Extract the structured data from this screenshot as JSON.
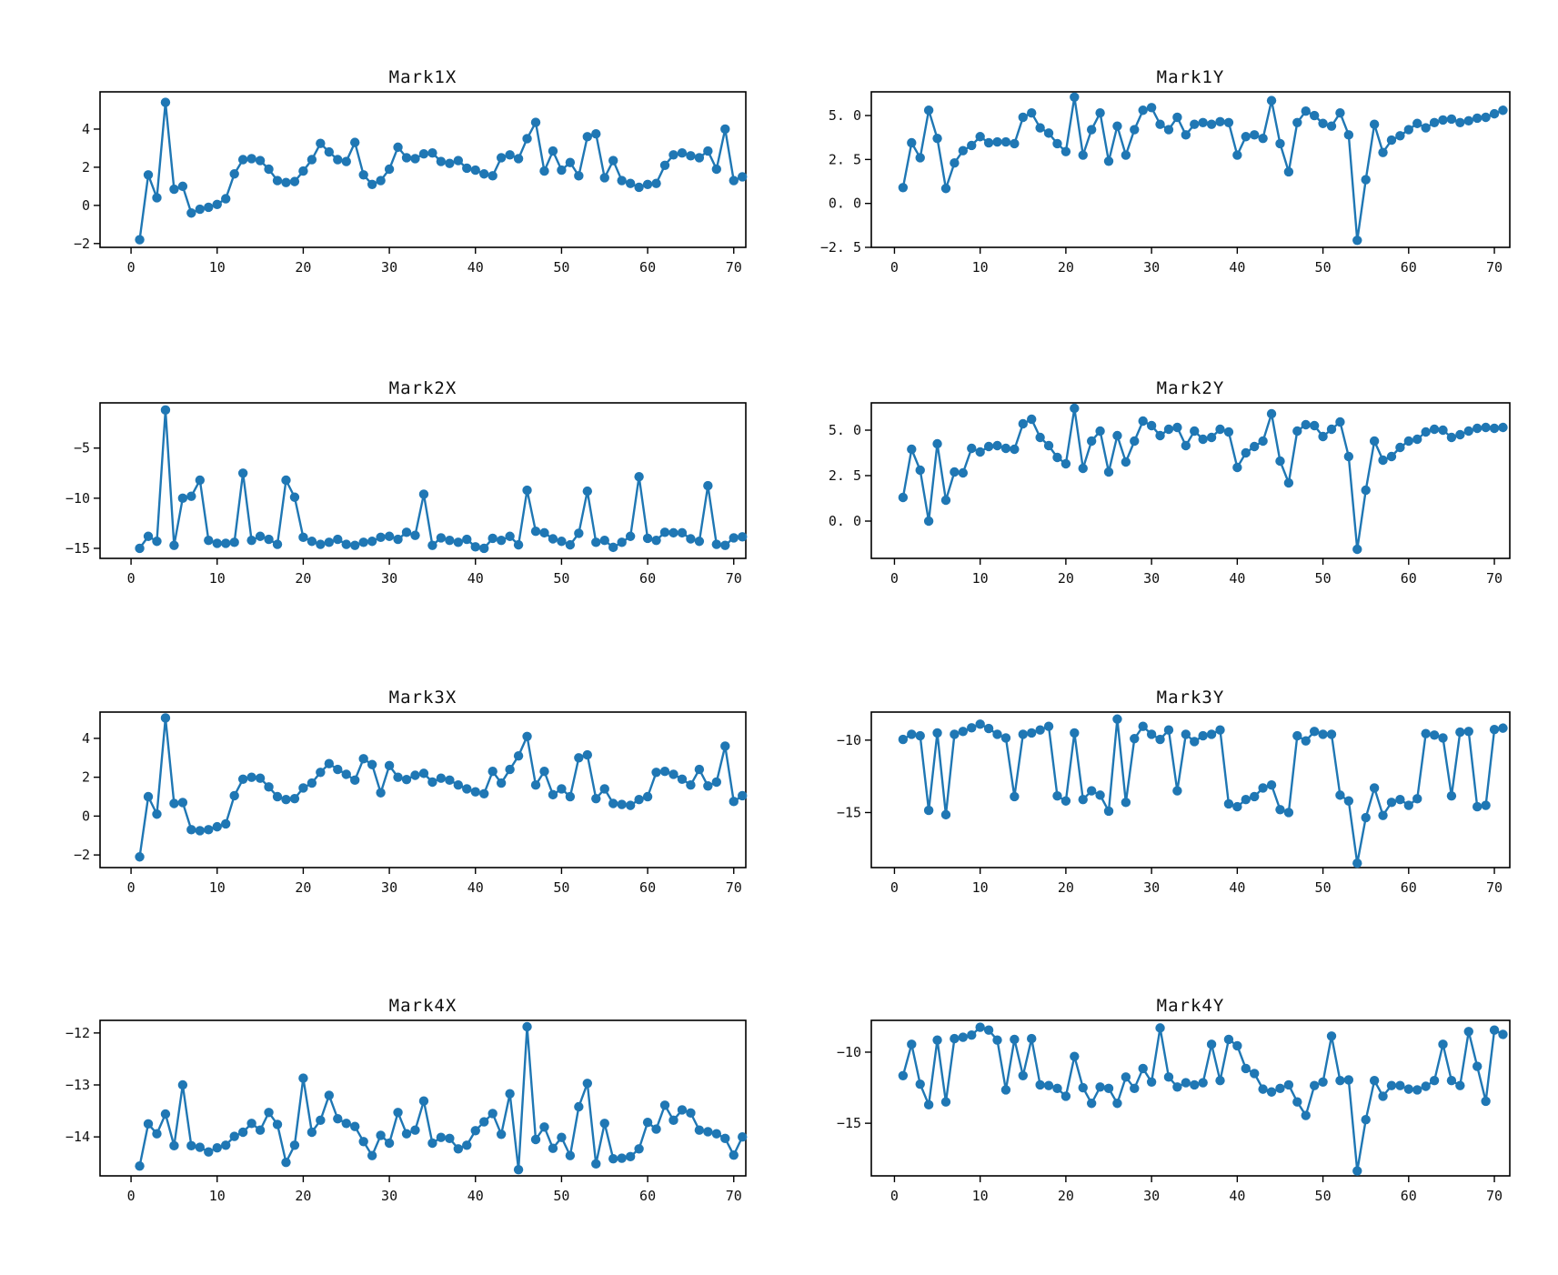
{
  "style": {
    "series_color": "#1f77b4",
    "axis_color": "#000000",
    "background": "#ffffff",
    "marker": "circle"
  },
  "charts": [
    {
      "id": "mark1x",
      "title": "Mark1X",
      "type": "line",
      "x_start": 1,
      "xlim": [
        -3.6,
        71.4
      ],
      "ylim": [
        -2.2,
        6.0
      ],
      "xticks": {
        "values": [
          0,
          10,
          20,
          30,
          40,
          50,
          60,
          70
        ],
        "labels": [
          "0",
          "10",
          "20",
          "30",
          "40",
          "50",
          "60",
          "70"
        ]
      },
      "yticks": {
        "values": [
          -2,
          0,
          2,
          4
        ],
        "labels": [
          "−2",
          "0",
          "2",
          "4"
        ]
      },
      "values": [
        -1.8,
        1.6,
        0.4,
        5.4,
        0.85,
        1.0,
        -0.4,
        -0.2,
        -0.1,
        0.05,
        0.35,
        1.65,
        2.4,
        2.45,
        2.35,
        1.9,
        1.3,
        1.2,
        1.25,
        1.8,
        2.4,
        3.25,
        2.8,
        2.4,
        2.3,
        3.3,
        1.6,
        1.1,
        1.3,
        1.9,
        3.05,
        2.5,
        2.45,
        2.7,
        2.75,
        2.3,
        2.2,
        2.35,
        1.95,
        1.85,
        1.65,
        1.55,
        2.5,
        2.65,
        2.45,
        3.5,
        4.35,
        1.8,
        2.85,
        1.85,
        2.25,
        1.55,
        3.6,
        3.75,
        1.45,
        2.35,
        1.3,
        1.15,
        0.95,
        1.1,
        1.15,
        2.1,
        2.65,
        2.75,
        2.6,
        2.5,
        2.85,
        1.9,
        4.0,
        1.3,
        1.5
      ]
    },
    {
      "id": "mark1y",
      "title": "Mark1Y",
      "type": "line",
      "x_start": 1,
      "xlim": [
        -2.7,
        71.8
      ],
      "ylim": [
        -2.5,
        6.4
      ],
      "xticks": {
        "values": [
          0,
          10,
          20,
          30,
          40,
          50,
          60,
          70
        ],
        "labels": [
          "0",
          "10",
          "20",
          "30",
          "40",
          "50",
          "60",
          "70"
        ]
      },
      "yticks": {
        "values": [
          -2.5,
          0,
          2.5,
          5
        ],
        "labels": [
          "−2. 5",
          "0. 0",
          "2. 5",
          "5. 0"
        ]
      },
      "values": [
        0.9,
        3.45,
        2.6,
        5.3,
        3.7,
        0.85,
        2.3,
        3.0,
        3.3,
        3.8,
        3.45,
        3.5,
        3.5,
        3.4,
        4.9,
        5.15,
        4.3,
        4.0,
        3.4,
        2.95,
        6.05,
        2.75,
        4.2,
        5.15,
        2.4,
        4.4,
        2.75,
        4.2,
        5.3,
        5.45,
        4.5,
        4.2,
        4.9,
        3.9,
        4.5,
        4.6,
        4.5,
        4.65,
        4.6,
        2.75,
        3.8,
        3.9,
        3.7,
        5.85,
        3.4,
        1.8,
        4.6,
        5.25,
        5.0,
        4.55,
        4.4,
        5.15,
        3.9,
        -2.1,
        1.35,
        4.5,
        2.9,
        3.6,
        3.85,
        4.2,
        4.55,
        4.3,
        4.6,
        4.75,
        4.8,
        4.6,
        4.7,
        4.85,
        4.9,
        5.1,
        5.3
      ]
    },
    {
      "id": "mark2x",
      "title": "Mark2X",
      "type": "line",
      "x_start": 1,
      "xlim": [
        -3.6,
        71.4
      ],
      "ylim": [
        -16.0,
        -0.4
      ],
      "xticks": {
        "values": [
          0,
          10,
          20,
          30,
          40,
          50,
          60,
          70
        ],
        "labels": [
          "0",
          "10",
          "20",
          "30",
          "40",
          "50",
          "60",
          "70"
        ]
      },
      "yticks": {
        "values": [
          -15,
          -10,
          -5
        ],
        "labels": [
          "−15",
          "−10",
          "−5"
        ]
      },
      "values": [
        -15.0,
        -13.8,
        -14.3,
        -1.2,
        -14.7,
        -10.0,
        -9.8,
        -8.2,
        -14.2,
        -14.5,
        -14.5,
        -14.4,
        -7.5,
        -14.2,
        -13.8,
        -14.1,
        -14.6,
        -8.2,
        -9.9,
        -13.9,
        -14.3,
        -14.6,
        -14.4,
        -14.1,
        -14.6,
        -14.7,
        -14.4,
        -14.3,
        -13.9,
        -13.8,
        -14.1,
        -13.4,
        -13.7,
        -9.6,
        -14.7,
        -13.95,
        -14.2,
        -14.4,
        -14.1,
        -14.85,
        -15.0,
        -14.0,
        -14.2,
        -13.8,
        -14.65,
        -9.2,
        -13.3,
        -13.45,
        -14.05,
        -14.3,
        -14.65,
        -13.5,
        -9.3,
        -14.4,
        -14.2,
        -14.9,
        -14.4,
        -13.8,
        -7.85,
        -14.0,
        -14.2,
        -13.4,
        -13.45,
        -13.45,
        -14.05,
        -14.3,
        -8.75,
        -14.6,
        -14.7,
        -13.95,
        -13.85
      ]
    },
    {
      "id": "mark2y",
      "title": "Mark2Y",
      "type": "line",
      "x_start": 1,
      "xlim": [
        -2.7,
        71.8
      ],
      "ylim": [
        -2.05,
        6.55
      ],
      "xticks": {
        "values": [
          0,
          10,
          20,
          30,
          40,
          50,
          60,
          70
        ],
        "labels": [
          "0",
          "10",
          "20",
          "30",
          "40",
          "50",
          "60",
          "70"
        ]
      },
      "yticks": {
        "values": [
          0,
          2.5,
          5
        ],
        "labels": [
          "0. 0",
          "2. 5",
          "5. 0"
        ]
      },
      "values": [
        1.3,
        3.95,
        2.8,
        0.0,
        4.25,
        1.15,
        2.7,
        2.65,
        4.0,
        3.8,
        4.1,
        4.15,
        4.0,
        3.95,
        5.35,
        5.6,
        4.6,
        4.15,
        3.5,
        3.15,
        6.2,
        2.9,
        4.4,
        4.95,
        2.7,
        4.7,
        3.25,
        4.4,
        5.5,
        5.25,
        4.7,
        5.05,
        5.15,
        4.15,
        4.95,
        4.5,
        4.6,
        5.05,
        4.9,
        2.95,
        3.75,
        4.1,
        4.4,
        5.9,
        3.3,
        2.1,
        4.95,
        5.3,
        5.25,
        4.65,
        5.05,
        5.45,
        3.55,
        -1.55,
        1.7,
        4.4,
        3.35,
        3.55,
        4.05,
        4.4,
        4.5,
        4.9,
        5.05,
        5.0,
        4.6,
        4.75,
        4.95,
        5.1,
        5.15,
        5.1,
        5.15
      ]
    },
    {
      "id": "mark3x",
      "title": "Mark3X",
      "type": "line",
      "x_start": 1,
      "xlim": [
        -3.6,
        71.4
      ],
      "ylim": [
        -2.65,
        5.4
      ],
      "xticks": {
        "values": [
          0,
          10,
          20,
          30,
          40,
          50,
          60,
          70
        ],
        "labels": [
          "0",
          "10",
          "20",
          "30",
          "40",
          "50",
          "60",
          "70"
        ]
      },
      "yticks": {
        "values": [
          -2,
          0,
          2,
          4
        ],
        "labels": [
          "−2",
          "0",
          "2",
          "4"
        ]
      },
      "values": [
        -2.1,
        1.0,
        0.1,
        5.05,
        0.65,
        0.7,
        -0.7,
        -0.75,
        -0.7,
        -0.55,
        -0.4,
        1.05,
        1.9,
        2.0,
        1.95,
        1.5,
        1.0,
        0.85,
        0.9,
        1.45,
        1.7,
        2.25,
        2.7,
        2.4,
        2.15,
        1.85,
        2.95,
        2.65,
        1.2,
        2.6,
        2.0,
        1.88,
        2.1,
        2.2,
        1.75,
        1.95,
        1.85,
        1.6,
        1.4,
        1.25,
        1.15,
        2.3,
        1.7,
        2.4,
        3.1,
        4.1,
        1.6,
        2.3,
        1.1,
        1.4,
        1.0,
        3.0,
        3.15,
        0.9,
        1.4,
        0.65,
        0.6,
        0.55,
        0.85,
        1.0,
        2.25,
        2.3,
        2.15,
        1.9,
        1.6,
        2.4,
        1.55,
        1.75,
        3.6,
        0.75,
        1.05
      ]
    },
    {
      "id": "mark3y",
      "title": "Mark3Y",
      "type": "line",
      "x_start": 1,
      "xlim": [
        -2.7,
        71.8
      ],
      "ylim": [
        -18.8,
        -8.0
      ],
      "xticks": {
        "values": [
          0,
          10,
          20,
          30,
          40,
          50,
          60,
          70
        ],
        "labels": [
          "0",
          "10",
          "20",
          "30",
          "40",
          "50",
          "60",
          "70"
        ]
      },
      "yticks": {
        "values": [
          -15,
          -10
        ],
        "labels": [
          "−15",
          "−10"
        ]
      },
      "values": [
        -9.95,
        -9.6,
        -9.7,
        -14.85,
        -9.5,
        -15.15,
        -9.6,
        -9.4,
        -9.15,
        -8.9,
        -9.2,
        -9.6,
        -9.85,
        -13.9,
        -9.6,
        -9.5,
        -9.3,
        -9.05,
        -13.85,
        -14.2,
        -9.5,
        -14.1,
        -13.5,
        -13.8,
        -14.9,
        -8.55,
        -14.3,
        -9.9,
        -9.05,
        -9.6,
        -9.95,
        -9.3,
        -13.5,
        -9.6,
        -10.1,
        -9.7,
        -9.6,
        -9.3,
        -14.4,
        -14.6,
        -14.1,
        -13.9,
        -13.3,
        -13.1,
        -14.8,
        -15.0,
        -9.7,
        -10.05,
        -9.4,
        -9.6,
        -9.6,
        -13.8,
        -14.2,
        -18.5,
        -15.35,
        -13.3,
        -15.2,
        -14.3,
        -14.1,
        -14.5,
        -14.05,
        -9.55,
        -9.65,
        -9.85,
        -13.85,
        -9.45,
        -9.4,
        -14.6,
        -14.5,
        -9.27,
        -9.17
      ]
    },
    {
      "id": "mark4x",
      "title": "Mark4X",
      "type": "line",
      "x_start": 1,
      "xlim": [
        -3.6,
        71.4
      ],
      "ylim": [
        -14.75,
        -11.74
      ],
      "xticks": {
        "values": [
          0,
          10,
          20,
          30,
          40,
          50,
          60,
          70
        ],
        "labels": [
          "0",
          "10",
          "20",
          "30",
          "40",
          "50",
          "60",
          "70"
        ]
      },
      "yticks": {
        "values": [
          -14,
          -13,
          -12
        ],
        "labels": [
          "−14",
          "−13",
          "−12"
        ]
      },
      "values": [
        -14.56,
        -13.75,
        -13.94,
        -13.56,
        -14.17,
        -13.0,
        -14.17,
        -14.2,
        -14.29,
        -14.21,
        -14.16,
        -13.99,
        -13.91,
        -13.74,
        -13.87,
        -13.53,
        -13.76,
        -14.49,
        -14.16,
        -12.87,
        -13.91,
        -13.68,
        -13.2,
        -13.65,
        -13.74,
        -13.8,
        -14.09,
        -14.36,
        -13.97,
        -14.12,
        -13.53,
        -13.94,
        -13.87,
        -13.31,
        -14.12,
        -14.01,
        -14.03,
        -14.23,
        -14.16,
        -13.88,
        -13.71,
        -13.55,
        -13.95,
        -13.17,
        -14.63,
        -11.88,
        -14.05,
        -13.81,
        -14.22,
        -14.01,
        -14.36,
        -13.42,
        -12.97,
        -14.52,
        -13.74,
        -14.42,
        -14.41,
        -14.38,
        -14.23,
        -13.72,
        -13.85,
        -13.39,
        -13.68,
        -13.48,
        -13.54,
        -13.87,
        -13.9,
        -13.94,
        -14.03,
        -14.35,
        -14.0
      ]
    },
    {
      "id": "mark4y",
      "title": "Mark4Y",
      "type": "line",
      "x_start": 1,
      "xlim": [
        -2.7,
        71.8
      ],
      "ylim": [
        -18.7,
        -7.7
      ],
      "xticks": {
        "values": [
          0,
          10,
          20,
          30,
          40,
          50,
          60,
          70
        ],
        "labels": [
          "0",
          "10",
          "20",
          "30",
          "40",
          "50",
          "60",
          "70"
        ]
      },
      "yticks": {
        "values": [
          -15,
          -10
        ],
        "labels": [
          "−15",
          "−10"
        ]
      },
      "values": [
        -11.65,
        -9.45,
        -12.25,
        -13.7,
        -9.15,
        -13.5,
        -9.05,
        -8.95,
        -8.8,
        -8.25,
        -8.45,
        -9.15,
        -12.65,
        -9.1,
        -11.65,
        -9.05,
        -12.3,
        -12.35,
        -12.55,
        -13.1,
        -10.3,
        -12.5,
        -13.6,
        -12.45,
        -12.55,
        -13.6,
        -11.75,
        -12.55,
        -11.15,
        -12.1,
        -8.3,
        -11.75,
        -12.45,
        -12.15,
        -12.3,
        -12.15,
        -9.45,
        -12.0,
        -9.1,
        -9.55,
        -11.15,
        -11.5,
        -12.6,
        -12.8,
        -12.55,
        -12.3,
        -13.5,
        -14.45,
        -12.35,
        -12.1,
        -8.87,
        -12.0,
        -11.95,
        -18.35,
        -14.75,
        -12.0,
        -13.1,
        -12.35,
        -12.35,
        -12.6,
        -12.65,
        -12.4,
        -12.0,
        -9.45,
        -12.0,
        -12.35,
        -8.55,
        -11.0,
        -13.45,
        -8.45,
        -8.75
      ]
    }
  ]
}
